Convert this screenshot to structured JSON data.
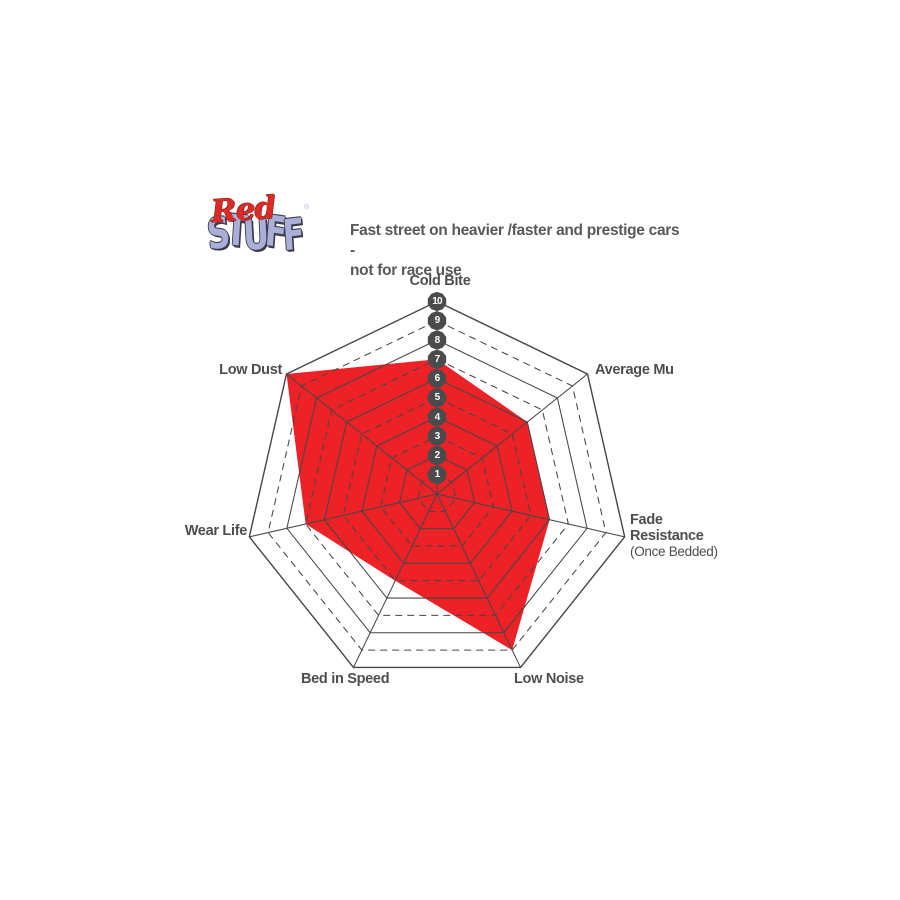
{
  "logo": {
    "word1": "Red",
    "word2": "STUFF",
    "registered": "®"
  },
  "subtitle": {
    "line1": "Fast street on heavier /faster and prestige cars -",
    "line2": "not for race use"
  },
  "chart_data": {
    "type": "radar",
    "title": "Fast street on heavier /faster and prestige cars - not for race use",
    "categories": [
      "Cold Bite",
      "Average Mu",
      "Fade Resistance",
      "Low Noise",
      "Bed in Speed",
      "Wear Life",
      "Low Dust"
    ],
    "values": [
      7,
      6,
      6,
      9,
      5,
      7,
      10
    ],
    "axis_sublabels": {
      "Fade Resistance": "(Once Bedded)"
    },
    "scale_ticks": [
      1,
      2,
      3,
      4,
      5,
      6,
      7,
      8,
      9,
      10
    ],
    "axis_range": [
      0,
      10
    ],
    "grid": {
      "rings": 10,
      "solid_rings": "even",
      "dashed_rings": "odd",
      "spokes": true
    },
    "legend": "none"
  },
  "colors": {
    "background": "#FFFFFF",
    "fill_red": "#EC2227",
    "grid_line": "#45464A",
    "badge_bg": "#4A4B4D",
    "badge_text": "#FFFFFF",
    "label_text": "#4D4E51",
    "subtitle_text": "#58595B",
    "logo_red": "#DC2B26",
    "logo_lavender": "#A9AFD8"
  }
}
